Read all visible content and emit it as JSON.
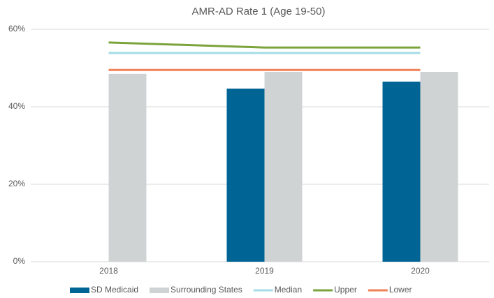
{
  "chart_data": {
    "type": "bar",
    "title": "AMR-AD Rate 1 (Age 19-50)",
    "categories": [
      "2018",
      "2019",
      "2020"
    ],
    "series": [
      {
        "name": "SD Medicaid",
        "type": "bar",
        "color": "#006494",
        "values": [
          null,
          44.7,
          46.5
        ]
      },
      {
        "name": "Surrounding States",
        "type": "bar",
        "color": "#d0d3d4",
        "values": [
          48.5,
          49.0,
          49.0
        ]
      },
      {
        "name": "Median",
        "type": "line",
        "color": "#a5dce8",
        "values": [
          53.9,
          53.9,
          53.9
        ]
      },
      {
        "name": "Upper",
        "type": "line",
        "color": "#7aa33b",
        "values": [
          56.6,
          55.3,
          55.3
        ]
      },
      {
        "name": "Lower",
        "type": "line",
        "color": "#f08056",
        "values": [
          49.5,
          49.5,
          49.5
        ]
      }
    ],
    "ylim": [
      0,
      60
    ],
    "yticks": [
      {
        "value": 0,
        "label": "0%"
      },
      {
        "value": 20,
        "label": "20%"
      },
      {
        "value": 40,
        "label": "40%"
      },
      {
        "value": 60,
        "label": "60%"
      }
    ],
    "grid": true,
    "legend": "bottom"
  }
}
